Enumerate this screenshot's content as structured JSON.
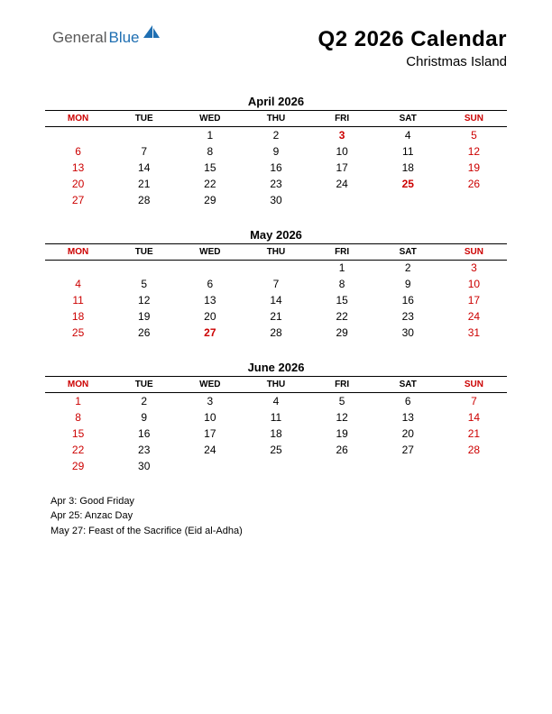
{
  "logo": {
    "text1": "General",
    "text2": "Blue",
    "icon_color": "#1f6fb2"
  },
  "title": "Q2 2026 Calendar",
  "subtitle": "Christmas Island",
  "day_headers": [
    "MON",
    "TUE",
    "WED",
    "THU",
    "FRI",
    "SAT",
    "SUN"
  ],
  "header_red_cols": [
    0,
    6
  ],
  "colors": {
    "red": "#cc0000",
    "black": "#000000",
    "bg": "#ffffff"
  },
  "months": [
    {
      "name": "April 2026",
      "weeks": [
        [
          null,
          null,
          {
            "d": 1
          },
          {
            "d": 2
          },
          {
            "d": 3,
            "red": true,
            "bold": true
          },
          {
            "d": 4
          },
          {
            "d": 5,
            "red": true
          }
        ],
        [
          {
            "d": 6,
            "red": true
          },
          {
            "d": 7
          },
          {
            "d": 8
          },
          {
            "d": 9
          },
          {
            "d": 10
          },
          {
            "d": 11
          },
          {
            "d": 12,
            "red": true
          }
        ],
        [
          {
            "d": 13,
            "red": true
          },
          {
            "d": 14
          },
          {
            "d": 15
          },
          {
            "d": 16
          },
          {
            "d": 17
          },
          {
            "d": 18
          },
          {
            "d": 19,
            "red": true
          }
        ],
        [
          {
            "d": 20,
            "red": true
          },
          {
            "d": 21
          },
          {
            "d": 22
          },
          {
            "d": 23
          },
          {
            "d": 24
          },
          {
            "d": 25,
            "red": true,
            "bold": true
          },
          {
            "d": 26,
            "red": true
          }
        ],
        [
          {
            "d": 27,
            "red": true
          },
          {
            "d": 28
          },
          {
            "d": 29
          },
          {
            "d": 30
          },
          null,
          null,
          null
        ]
      ]
    },
    {
      "name": "May 2026",
      "weeks": [
        [
          null,
          null,
          null,
          null,
          {
            "d": 1
          },
          {
            "d": 2
          },
          {
            "d": 3,
            "red": true
          }
        ],
        [
          {
            "d": 4,
            "red": true
          },
          {
            "d": 5
          },
          {
            "d": 6
          },
          {
            "d": 7
          },
          {
            "d": 8
          },
          {
            "d": 9
          },
          {
            "d": 10,
            "red": true
          }
        ],
        [
          {
            "d": 11,
            "red": true
          },
          {
            "d": 12
          },
          {
            "d": 13
          },
          {
            "d": 14
          },
          {
            "d": 15
          },
          {
            "d": 16
          },
          {
            "d": 17,
            "red": true
          }
        ],
        [
          {
            "d": 18,
            "red": true
          },
          {
            "d": 19
          },
          {
            "d": 20
          },
          {
            "d": 21
          },
          {
            "d": 22
          },
          {
            "d": 23
          },
          {
            "d": 24,
            "red": true
          }
        ],
        [
          {
            "d": 25,
            "red": true
          },
          {
            "d": 26
          },
          {
            "d": 27,
            "red": true,
            "bold": true
          },
          {
            "d": 28
          },
          {
            "d": 29
          },
          {
            "d": 30
          },
          {
            "d": 31,
            "red": true
          }
        ]
      ]
    },
    {
      "name": "June 2026",
      "weeks": [
        [
          {
            "d": 1,
            "red": true
          },
          {
            "d": 2
          },
          {
            "d": 3
          },
          {
            "d": 4
          },
          {
            "d": 5
          },
          {
            "d": 6
          },
          {
            "d": 7,
            "red": true
          }
        ],
        [
          {
            "d": 8,
            "red": true
          },
          {
            "d": 9
          },
          {
            "d": 10
          },
          {
            "d": 11
          },
          {
            "d": 12
          },
          {
            "d": 13
          },
          {
            "d": 14,
            "red": true
          }
        ],
        [
          {
            "d": 15,
            "red": true
          },
          {
            "d": 16
          },
          {
            "d": 17
          },
          {
            "d": 18
          },
          {
            "d": 19
          },
          {
            "d": 20
          },
          {
            "d": 21,
            "red": true
          }
        ],
        [
          {
            "d": 22,
            "red": true
          },
          {
            "d": 23
          },
          {
            "d": 24
          },
          {
            "d": 25
          },
          {
            "d": 26
          },
          {
            "d": 27
          },
          {
            "d": 28,
            "red": true
          }
        ],
        [
          {
            "d": 29,
            "red": true
          },
          {
            "d": 30
          },
          null,
          null,
          null,
          null,
          null
        ]
      ]
    }
  ],
  "holidays": [
    "Apr 3: Good Friday",
    "Apr 25: Anzac Day",
    "May 27: Feast of the Sacrifice (Eid al-Adha)"
  ]
}
